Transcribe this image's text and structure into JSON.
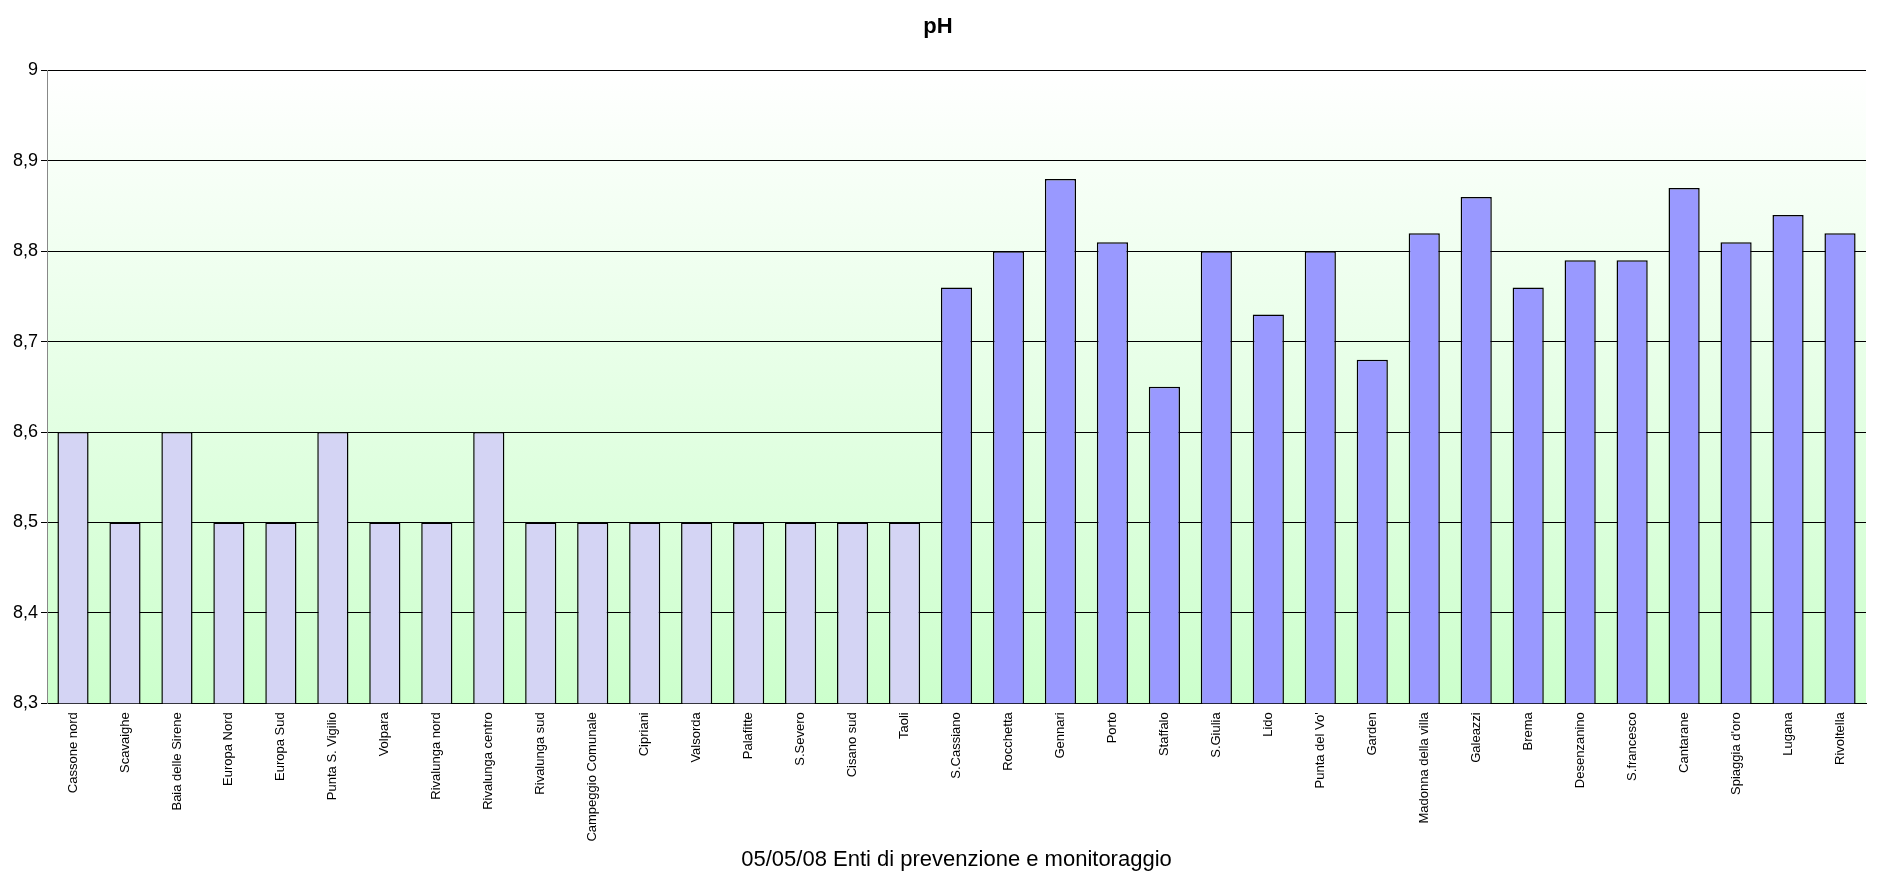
{
  "chart_data": {
    "type": "bar",
    "title": "pH",
    "xlabel": "05/05/08 Enti di prevenzione e monitoraggio",
    "categories": [
      "Cassone nord",
      "Scavaighe",
      "Baia delle Sirene",
      "Europa Nord",
      "Europa Sud",
      "Punta S. Vigilio",
      "Volpara",
      "Rivalunga nord",
      "Rivalunga centro",
      "Rivalunga sud",
      "Campeggio Comunale",
      "Cipriani",
      "Valsorda",
      "Palafitte",
      "S.Severo",
      "Cisano sud",
      "Taoli",
      "S.Cassiano",
      "Rocchetta",
      "Gennari",
      "Porto",
      "Staffalo",
      "S.Giulia",
      "Lido",
      "Punta del Vo'",
      "Garden",
      "Madonna della villa",
      "Galeazzi",
      "Brema",
      "Desenzanino",
      "S.francesco",
      "Cantarane",
      "Spiaggia d'oro",
      "Lugana",
      "Rivoltella"
    ],
    "values": [
      8.6,
      8.5,
      8.6,
      8.5,
      8.5,
      8.6,
      8.5,
      8.5,
      8.6,
      8.5,
      8.5,
      8.5,
      8.5,
      8.5,
      8.5,
      8.5,
      8.5,
      8.76,
      8.8,
      8.88,
      8.81,
      8.65,
      8.8,
      8.73,
      8.8,
      8.68,
      8.82,
      8.86,
      8.76,
      8.79,
      8.79,
      8.87,
      8.81,
      8.84,
      8.82
    ],
    "colors": [
      "#d4d4f4",
      "#d4d4f4",
      "#d4d4f4",
      "#d4d4f4",
      "#d4d4f4",
      "#d4d4f4",
      "#d4d4f4",
      "#d4d4f4",
      "#d4d4f4",
      "#d4d4f4",
      "#d4d4f4",
      "#d4d4f4",
      "#d4d4f4",
      "#d4d4f4",
      "#d4d4f4",
      "#d4d4f4",
      "#d4d4f4",
      "#9999ff",
      "#9999ff",
      "#9999ff",
      "#9999ff",
      "#9999ff",
      "#9999ff",
      "#9999ff",
      "#9999ff",
      "#9999ff",
      "#9999ff",
      "#9999ff",
      "#9999ff",
      "#9999ff",
      "#9999ff",
      "#9999ff",
      "#9999ff",
      "#9999ff",
      "#9999ff"
    ],
    "ylim": [
      8.3,
      9
    ],
    "yticks": [
      {
        "value": 8.3,
        "label": "8,3"
      },
      {
        "value": 8.4,
        "label": "8,4"
      },
      {
        "value": 8.5,
        "label": "8,5"
      },
      {
        "value": 8.6,
        "label": "8,6"
      },
      {
        "value": 8.7,
        "label": "8,7"
      },
      {
        "value": 8.8,
        "label": "8,8"
      },
      {
        "value": 8.9,
        "label": "8,9"
      },
      {
        "value": 9,
        "label": "9"
      }
    ],
    "grid": "y",
    "legend": false
  }
}
